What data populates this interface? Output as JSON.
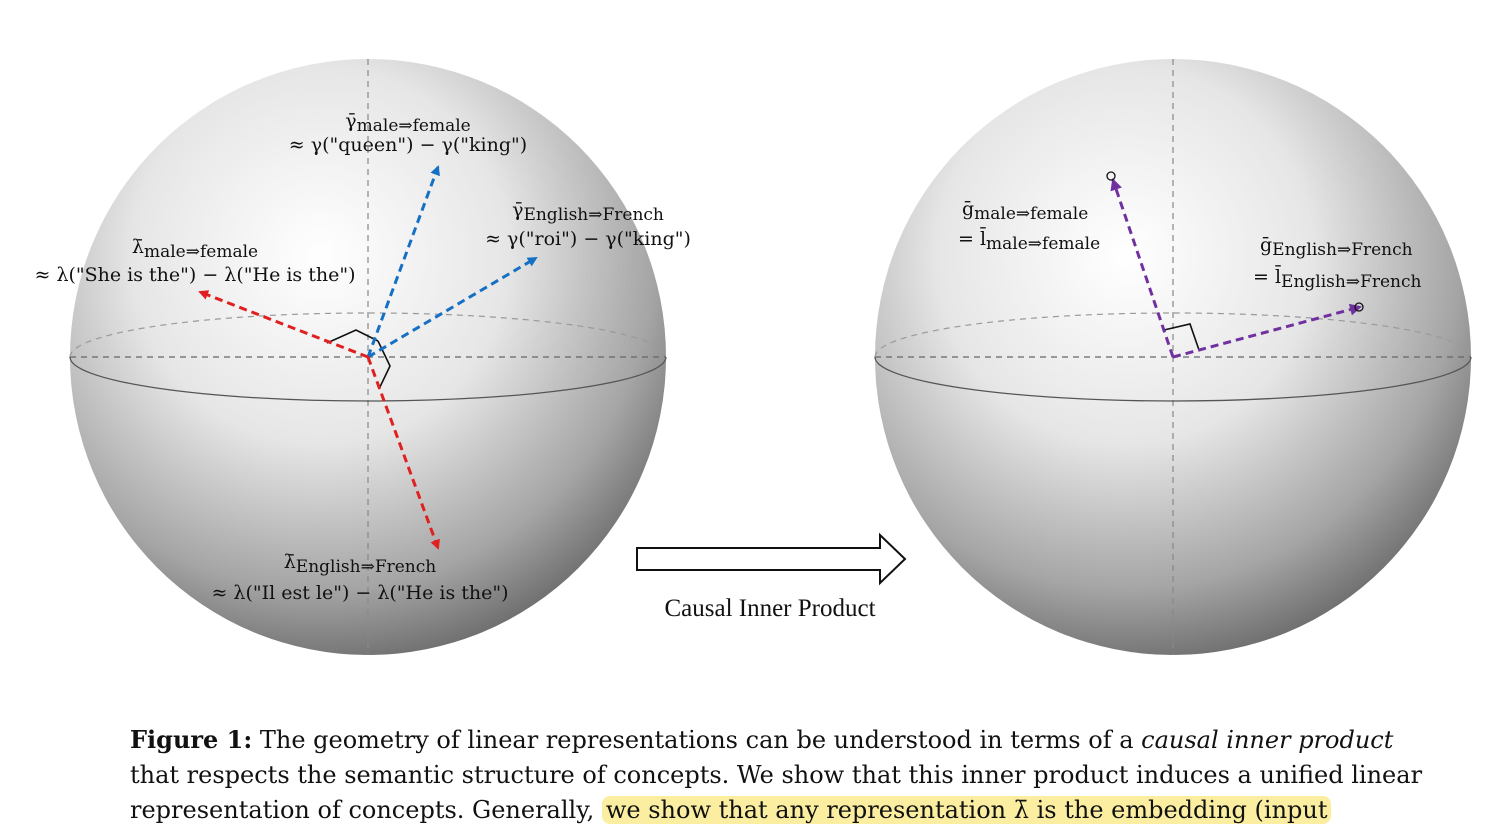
{
  "left_sphere": {
    "gamma_gender": {
      "symbol": "γ̄",
      "subscript": "male⇒female",
      "approx": "≈ γ(\"queen\") − γ(\"king\")"
    },
    "gamma_lang": {
      "symbol": "γ̄",
      "subscript": "English⇒French",
      "approx": "≈ γ(\"roi\") − γ(\"king\")"
    },
    "lambda_gender": {
      "symbol": "λ̄",
      "subscript": "male⇒female",
      "approx": "≈ λ(\"She is the\") − λ(\"He is the\")"
    },
    "lambda_lang": {
      "symbol": "λ̄",
      "subscript": "English⇒French",
      "approx": "≈ λ(\"Il est le\") − λ(\"He is the\")"
    }
  },
  "arrow_label": "Causal Inner Product",
  "right_sphere": {
    "g_gender": {
      "symbol": "ḡ",
      "subscript": "male⇒female",
      "eq": "= l̄",
      "eq_subscript": "male⇒female"
    },
    "g_lang": {
      "symbol": "ḡ",
      "subscript": "English⇒French",
      "eq": "= l̄",
      "eq_subscript": "English⇒French"
    }
  },
  "caption": {
    "label": "Figure 1:",
    "text1": " The geometry of linear representations can be understood in terms of a ",
    "italic": "causal inner product",
    "text2": " that respects the semantic structure of concepts. We show that this inner product induces a unified linear",
    "line3a": "representation of concepts. Generally, ",
    "line3b": "we show that any representation λ̄ is the embedding (input"
  },
  "colors": {
    "gamma": "#1570c4",
    "lambda": "#e02020",
    "unified": "#7030a0"
  }
}
